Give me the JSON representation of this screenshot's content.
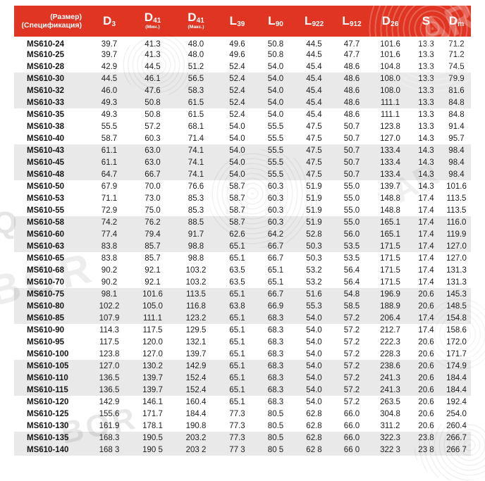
{
  "header": {
    "size_label": "(Размер)",
    "spec_label": "(Спецификация)",
    "columns": [
      {
        "main": "D",
        "sub": "3",
        "note": ""
      },
      {
        "main": "D",
        "sub": "41",
        "note": "(Мин.)"
      },
      {
        "main": "D",
        "sub": "41",
        "note": "(Макс.)"
      },
      {
        "main": "L",
        "sub": "39",
        "note": ""
      },
      {
        "main": "L",
        "sub": "90",
        "note": ""
      },
      {
        "main": "L",
        "sub": "922",
        "note": ""
      },
      {
        "main": "L",
        "sub": "912",
        "note": ""
      },
      {
        "main": "D",
        "sub": "26",
        "note": ""
      },
      {
        "main": "S",
        "sub": "",
        "note": ""
      },
      {
        "main": "D",
        "sub": "m",
        "note": ""
      }
    ]
  },
  "table": {
    "rows": [
      {
        "model": "MS610-24",
        "values": [
          "39.7",
          "41.3",
          "48.0",
          "49.6",
          "50.8",
          "44.5",
          "47.7",
          "101.6",
          "13.3",
          "71.2"
        ]
      },
      {
        "model": "MS610-25",
        "values": [
          "39.7",
          "41.3",
          "48.0",
          "49.6",
          "50.8",
          "44.5",
          "47.7",
          "101.6",
          "13.3",
          "71.2"
        ]
      },
      {
        "model": "MS610-28",
        "values": [
          "42.9",
          "44.5",
          "51.2",
          "52.4",
          "54.0",
          "45.4",
          "48.6",
          "104.8",
          "13.3",
          "74.5"
        ]
      },
      {
        "model": "MS610-30",
        "values": [
          "44.5",
          "46.1",
          "56.5",
          "52.4",
          "54.0",
          "45.4",
          "48.6",
          "108.0",
          "13.3",
          "79.9"
        ]
      },
      {
        "model": "MS610-32",
        "values": [
          "46.0",
          "47.6",
          "58.3",
          "52.4",
          "54.0",
          "45.4",
          "48.6",
          "108.0",
          "13.3",
          "81.6"
        ]
      },
      {
        "model": "MS610-33",
        "values": [
          "49.3",
          "50.8",
          "61.5",
          "52.4",
          "54.0",
          "45.4",
          "48.6",
          "111.1",
          "13.3",
          "84.8"
        ]
      },
      {
        "model": "MS610-35",
        "values": [
          "49.3",
          "50.8",
          "61.5",
          "52.4",
          "54.0",
          "45.4",
          "48.6",
          "111.1",
          "13.3",
          "84.8"
        ]
      },
      {
        "model": "MS610-38",
        "values": [
          "55.5",
          "57.2",
          "68.1",
          "54.0",
          "55.5",
          "47.5",
          "50.7",
          "123.8",
          "13.3",
          "91.4"
        ]
      },
      {
        "model": "MS610-40",
        "values": [
          "58.7",
          "60.3",
          "71.4",
          "54.0",
          "55.5",
          "47.5",
          "50.7",
          "127.0",
          "14.3",
          "95.7"
        ]
      },
      {
        "model": "MS610-43",
        "values": [
          "61.1",
          "63.0",
          "74.1",
          "54.0",
          "55.5",
          "47.5",
          "50.7",
          "133.4",
          "14.3",
          "98.4"
        ]
      },
      {
        "model": "MS610-45",
        "values": [
          "61.1",
          "63.0",
          "74.1",
          "54.0",
          "55.5",
          "47.5",
          "50.7",
          "133.4",
          "14.3",
          "98.4"
        ]
      },
      {
        "model": "MS610-48",
        "values": [
          "64.7",
          "66.7",
          "74.1",
          "54.0",
          "55.5",
          "47.5",
          "50.7",
          "133.4",
          "14.3",
          "98.4"
        ]
      },
      {
        "model": "MS610-50",
        "values": [
          "67.9",
          "70.0",
          "76.6",
          "58.7",
          "60.3",
          "51.9",
          "55.0",
          "139.7",
          "14.3",
          "101.6"
        ]
      },
      {
        "model": "MS610-53",
        "values": [
          "71.1",
          "73.0",
          "85.3",
          "58.7",
          "60.3",
          "51.9",
          "55.0",
          "148.8",
          "17.4",
          "113.5"
        ]
      },
      {
        "model": "MS610-55",
        "values": [
          "72.9",
          "75.0",
          "85.3",
          "58.7",
          "60.3",
          "51.9",
          "55.0",
          "148.8",
          "17.4",
          "113.5"
        ]
      },
      {
        "model": "MS610-58",
        "values": [
          "74.2",
          "76.2",
          "88.5",
          "58.7",
          "60.3",
          "51.9",
          "55.0",
          "165.1",
          "17.4",
          "116.0"
        ]
      },
      {
        "model": "MS610-60",
        "values": [
          "77.4",
          "79.4",
          "91.7",
          "62.6",
          "64.2",
          "52.8",
          "56.0",
          "165.1",
          "17.4",
          "119.9"
        ]
      },
      {
        "model": "MS610-63",
        "values": [
          "83.8",
          "85.7",
          "98.8",
          "65.1",
          "66.7",
          "50.3",
          "53.5",
          "171.5",
          "17.4",
          "127.0"
        ]
      },
      {
        "model": "MS610-65",
        "values": [
          "83.8",
          "85.7",
          "98.8",
          "65.1",
          "66.7",
          "50.3",
          "53.5",
          "171.5",
          "17.4",
          "127.0"
        ]
      },
      {
        "model": "MS610-68",
        "values": [
          "90.2",
          "92.1",
          "103.2",
          "63.5",
          "65.1",
          "53.2",
          "56.4",
          "171.5",
          "17.4",
          "131.3"
        ]
      },
      {
        "model": "MS610-70",
        "values": [
          "90.2",
          "92.1",
          "103.2",
          "63.5",
          "65.1",
          "53.2",
          "56.4",
          "171.5",
          "17.4",
          "131.3"
        ]
      },
      {
        "model": "MS610-75",
        "values": [
          "98.1",
          "101.6",
          "113.5",
          "65.1",
          "66.7",
          "51.6",
          "54.8",
          "196.9",
          "20.6",
          "145.3"
        ]
      },
      {
        "model": "MS610-80",
        "values": [
          "102.2",
          "105.0",
          "116.8",
          "63.8",
          "66.9",
          "55.3",
          "58.5",
          "188.9",
          "20.6",
          "148.5"
        ]
      },
      {
        "model": "MS610-85",
        "values": [
          "107.9",
          "111.1",
          "123.2",
          "65.1",
          "68.3",
          "54.0",
          "57.2",
          "206.4",
          "17.4",
          "154.8"
        ]
      },
      {
        "model": "MS610-90",
        "values": [
          "114.3",
          "117.5",
          "129.5",
          "65.1",
          "68.3",
          "54.0",
          "57.2",
          "212.7",
          "17.4",
          "158.6"
        ]
      },
      {
        "model": "MS610-95",
        "values": [
          "117.5",
          "120.0",
          "132.1",
          "65.1",
          "68.3",
          "54.0",
          "57.2",
          "222.3",
          "20.6",
          "172.0"
        ]
      },
      {
        "model": "MS610-100",
        "values": [
          "123.8",
          "127.0",
          "139.7",
          "65.1",
          "68.3",
          "54.0",
          "57.2",
          "228.3",
          "20.6",
          "171.7"
        ]
      },
      {
        "model": "MS610-105",
        "values": [
          "127.0",
          "130.2",
          "142.9",
          "65.1",
          "68.3",
          "54.0",
          "57.2",
          "238.6",
          "20.6",
          "174.9"
        ]
      },
      {
        "model": "MS610-110",
        "values": [
          "136.5",
          "139.7",
          "152.4",
          "65.1",
          "68.3",
          "54.0",
          "57.2",
          "241.3",
          "20.6",
          "184.4"
        ]
      },
      {
        "model": "MS610-115",
        "values": [
          "136.5",
          "139.7",
          "152.4",
          "65.1",
          "68.3",
          "54.0",
          "57.2",
          "241.3",
          "20.6",
          "184.4"
        ]
      },
      {
        "model": "MS610-120",
        "values": [
          "142.9",
          "146.1",
          "160.4",
          "65.1",
          "68.3",
          "54.0",
          "57.2",
          "263.5",
          "20.6",
          "192.4"
        ]
      },
      {
        "model": "MS610-125",
        "values": [
          "155.6",
          "171.7",
          "184.4",
          "77.3",
          "80.5",
          "62.8",
          "66.0",
          "304.8",
          "20.6",
          "254.0"
        ]
      },
      {
        "model": "MS610-130",
        "values": [
          "161.9",
          "178.1",
          "190.8",
          "77.3",
          "80.5",
          "62.8",
          "66.0",
          "311.2",
          "20.6",
          "260.4"
        ]
      },
      {
        "model": "MS610-135",
        "values": [
          "168.3",
          "190.5",
          "203.2",
          "77.3",
          "80.5",
          "62.8",
          "66.0",
          "322.3",
          "23.8",
          "266.7"
        ]
      },
      {
        "model": "MS610-140",
        "values": [
          "168 3",
          "190 5",
          "203 2",
          "77 3",
          "80 5",
          "62 8",
          "66 0",
          "322 3",
          "23 8",
          "266 7"
        ]
      }
    ]
  },
  "watermarks": [
    "AR",
    "Q",
    "BOR",
    "BOR",
    "AR"
  ],
  "colors": {
    "header_red": "#df3522",
    "row_shade": "#e9e9e9",
    "text": "#1d1d1f"
  }
}
